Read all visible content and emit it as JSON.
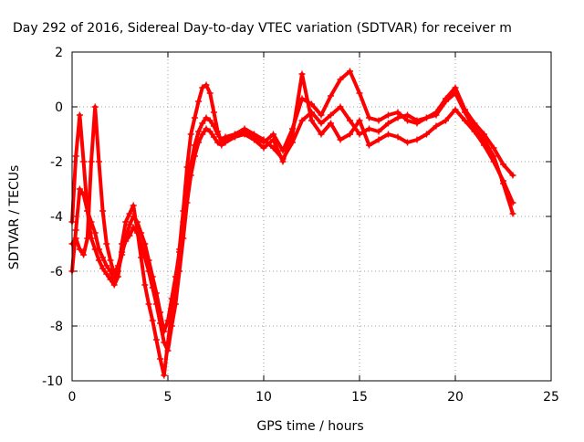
{
  "chart_data": {
    "type": "scatter",
    "title": "Day 292 of 2016, Sidereal Day-to-day VTEC variation (SDTVAR) for receiver m",
    "xlabel": "GPS time / hours",
    "ylabel": "SDTVAR / TECUs",
    "xlim": [
      0,
      25
    ],
    "ylim": [
      -10,
      2
    ],
    "x_ticks": [
      "0",
      "5",
      "10",
      "15",
      "20",
      "25"
    ],
    "y_ticks": [
      "2",
      "0",
      "-2",
      "-4",
      "-6",
      "-8",
      "-10"
    ],
    "x_tick_values": [
      0,
      5,
      10,
      15,
      20,
      25
    ],
    "y_tick_values": [
      2,
      0,
      -2,
      -4,
      -6,
      -8,
      -10
    ],
    "grid": true,
    "legend": "none",
    "marker": "+",
    "color": "#ff0000",
    "series": [
      {
        "x": [
          0.0,
          0.2,
          0.4,
          0.6,
          0.8,
          1.0,
          1.2,
          1.4,
          1.6,
          1.8,
          2.0,
          2.2,
          2.4,
          2.6,
          2.8,
          3.0,
          3.2,
          3.4,
          3.6,
          3.8,
          4.0,
          4.2,
          4.4,
          4.6,
          4.8,
          5.0,
          5.2,
          5.4,
          5.6,
          5.8,
          6.0,
          6.2,
          6.4,
          6.6,
          6.8,
          7.0,
          7.2,
          7.4,
          7.6,
          7.8,
          8.0,
          8.5,
          9.0,
          9.5,
          10.0,
          10.5,
          11.0,
          11.5,
          12.0,
          12.5,
          13.0,
          13.5,
          14.0,
          14.5,
          15.0,
          15.5,
          16.0,
          16.5,
          17.0,
          17.5,
          18.0,
          18.5,
          19.0,
          19.5,
          20.0,
          20.5,
          21.0,
          21.5,
          22.0,
          22.5,
          23.0
        ],
        "y": [
          -4.2,
          -1.8,
          -0.3,
          -2.0,
          -3.8,
          -4.8,
          -5.2,
          -5.6,
          -5.9,
          -6.1,
          -6.3,
          -6.5,
          -6.2,
          -5.0,
          -4.2,
          -3.9,
          -3.6,
          -4.5,
          -5.5,
          -6.5,
          -7.2,
          -7.8,
          -8.5,
          -9.2,
          -9.8,
          -8.6,
          -7.5,
          -6.5,
          -5.2,
          -3.8,
          -2.2,
          -1.0,
          -0.4,
          0.2,
          0.7,
          0.8,
          0.5,
          -0.2,
          -0.9,
          -1.3,
          -1.2,
          -1.0,
          -0.8,
          -1.0,
          -1.2,
          -1.5,
          -1.9,
          -1.3,
          -0.5,
          -0.2,
          -0.6,
          -0.3,
          0.0,
          -0.5,
          -1.0,
          -0.8,
          -0.9,
          -0.6,
          -0.4,
          -0.3,
          -0.5,
          -0.4,
          -0.3,
          0.2,
          0.5,
          -0.2,
          -0.8,
          -1.2,
          -1.8,
          -2.8,
          -3.9
        ]
      },
      {
        "x": [
          0.0,
          0.2,
          0.4,
          0.6,
          0.8,
          1.0,
          1.2,
          1.4,
          1.6,
          1.8,
          2.0,
          2.2,
          2.4,
          2.6,
          2.8,
          3.0,
          3.2,
          3.4,
          3.6,
          3.8,
          4.0,
          4.2,
          4.4,
          4.6,
          4.8,
          5.0,
          5.2,
          5.4,
          5.6,
          5.8,
          6.0,
          6.2,
          6.4,
          6.6,
          6.8,
          7.0,
          7.2,
          7.4,
          7.6,
          7.8,
          8.0,
          8.5,
          9.0,
          9.5,
          10.0,
          10.5,
          11.0,
          11.5,
          12.0,
          12.5,
          13.0,
          13.5,
          14.0,
          14.5,
          15.0,
          15.5,
          16.0,
          16.5,
          17.0,
          17.5,
          18.0,
          18.5,
          19.0,
          19.5,
          20.0,
          20.5,
          21.0,
          21.5,
          22.0,
          22.5,
          23.0
        ],
        "y": [
          -6.0,
          -4.5,
          -3.0,
          -3.2,
          -3.8,
          -4.2,
          -4.6,
          -5.2,
          -5.5,
          -5.8,
          -6.0,
          -6.4,
          -6.0,
          -5.4,
          -4.8,
          -4.3,
          -4.0,
          -4.2,
          -4.6,
          -5.0,
          -5.6,
          -6.2,
          -6.8,
          -7.5,
          -8.2,
          -7.8,
          -7.0,
          -6.2,
          -5.3,
          -4.2,
          -3.0,
          -2.1,
          -1.4,
          -0.9,
          -0.6,
          -0.4,
          -0.5,
          -0.7,
          -1.0,
          -1.2,
          -1.1,
          -1.0,
          -0.9,
          -1.1,
          -1.3,
          -1.0,
          -1.6,
          -0.8,
          0.3,
          0.1,
          -0.3,
          0.4,
          1.0,
          1.3,
          0.5,
          -0.4,
          -0.5,
          -0.3,
          -0.2,
          -0.5,
          -0.6,
          -0.4,
          -0.2,
          0.3,
          0.7,
          -0.1,
          -0.6,
          -1.0,
          -1.5,
          -2.1,
          -2.5
        ]
      },
      {
        "x": [
          0.0,
          0.2,
          0.4,
          0.6,
          0.8,
          1.0,
          1.2,
          1.4,
          1.6,
          1.8,
          2.0,
          2.2,
          2.4,
          2.6,
          2.8,
          3.0,
          3.2,
          3.4,
          3.6,
          3.8,
          4.0,
          4.2,
          4.4,
          4.6,
          4.8,
          5.0,
          5.2,
          5.4,
          5.6,
          5.8,
          6.0,
          6.2,
          6.4,
          6.6,
          6.8,
          7.0,
          7.2,
          7.4,
          7.6,
          7.8,
          8.0,
          8.5,
          9.0,
          9.5,
          10.0,
          10.5,
          11.0,
          11.5,
          12.0,
          12.5,
          13.0,
          13.5,
          14.0,
          14.5,
          15.0,
          15.5,
          16.0,
          16.5,
          17.0,
          17.5,
          18.0,
          18.5,
          19.0,
          19.5,
          20.0,
          20.5,
          21.0,
          21.5,
          22.0,
          22.5,
          23.0
        ],
        "y": [
          -5.0,
          -4.8,
          -5.2,
          -5.4,
          -4.8,
          -2.0,
          0.0,
          -2.0,
          -3.8,
          -5.0,
          -5.6,
          -6.1,
          -5.8,
          -5.3,
          -4.9,
          -4.7,
          -4.4,
          -4.6,
          -5.0,
          -5.5,
          -6.0,
          -6.6,
          -7.2,
          -7.9,
          -8.6,
          -8.9,
          -8.0,
          -7.2,
          -6.0,
          -4.8,
          -3.5,
          -2.5,
          -1.8,
          -1.3,
          -1.0,
          -0.8,
          -0.9,
          -1.1,
          -1.3,
          -1.4,
          -1.3,
          -1.1,
          -1.0,
          -1.2,
          -1.5,
          -1.2,
          -2.0,
          -1.0,
          1.2,
          -0.5,
          -1.0,
          -0.6,
          -1.2,
          -1.0,
          -0.5,
          -1.4,
          -1.2,
          -1.0,
          -1.1,
          -1.3,
          -1.2,
          -1.0,
          -0.7,
          -0.5,
          -0.1,
          -0.5,
          -0.9,
          -1.4,
          -2.0,
          -2.7,
          -3.5
        ]
      }
    ]
  }
}
